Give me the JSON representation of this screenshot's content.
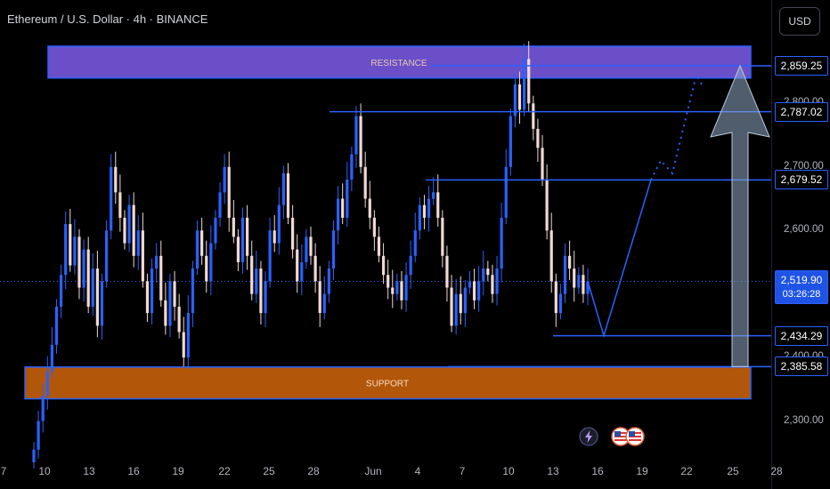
{
  "header": {
    "title": "Ethereum / U.S. Dollar · 4h · BINANCE"
  },
  "toolbar": {
    "currency_label": "USD"
  },
  "colors": {
    "bull": "#2962ff",
    "bear": "#f0d9d3",
    "resistance_zone": "#6a4fc9",
    "support_zone": "#b2560a",
    "level_line": "#2962ff",
    "arrow": "#8fa9c4"
  },
  "icons": [
    "lightning-icon",
    "us-flag-icon"
  ],
  "chart_data": {
    "type": "candlestick",
    "title": "Ethereum / U.S. Dollar · 4h · BINANCE",
    "ylim": [
      2235,
      2890
    ],
    "y_ticks": [
      2300,
      2400,
      2600,
      2700,
      2800
    ],
    "y_tick_labels": [
      "2,300.00",
      "2,400.00",
      "2,600.00",
      "2,700.00",
      "2,800.00"
    ],
    "x_tick_labels": [
      "7",
      "10",
      "13",
      "16",
      "19",
      "22",
      "25",
      "28",
      "Jun",
      "4",
      "7",
      "10",
      "13",
      "16",
      "19",
      "22",
      "25",
      "28"
    ],
    "price_levels": [
      {
        "value": 2859.25,
        "label": "2,859.25",
        "style": "outline"
      },
      {
        "value": 2787.02,
        "label": "2,787.02",
        "style": "outline"
      },
      {
        "value": 2679.52,
        "label": "2,679.52",
        "style": "outline"
      },
      {
        "value": 2434.29,
        "label": "2,434.29",
        "style": "outline"
      },
      {
        "value": 2385.58,
        "label": "2,385.58",
        "style": "outline"
      }
    ],
    "current_price": {
      "value": 2519.9,
      "label": "2,519.90",
      "countdown": "03:26:28"
    },
    "zones": [
      {
        "name": "resistance",
        "label": "RESISTANCE",
        "from": 2840,
        "to": 2890
      },
      {
        "name": "support",
        "label": "SUPPORT",
        "from": 2335,
        "to": 2385
      }
    ],
    "candles_close": [
      2255,
      2300,
      2340,
      2378,
      2420,
      2480,
      2530,
      2610,
      2545,
      2590,
      2510,
      2570,
      2480,
      2540,
      2450,
      2520,
      2600,
      2700,
      2660,
      2620,
      2580,
      2640,
      2560,
      2600,
      2520,
      2470,
      2540,
      2560,
      2490,
      2450,
      2520,
      2480,
      2440,
      2400,
      2470,
      2540,
      2600,
      2560,
      2520,
      2580,
      2620,
      2660,
      2700,
      2620,
      2590,
      2550,
      2620,
      2560,
      2500,
      2540,
      2470,
      2520,
      2600,
      2580,
      2640,
      2690,
      2620,
      2570,
      2520,
      2550,
      2590,
      2560,
      2520,
      2470,
      2500,
      2540,
      2600,
      2650,
      2620,
      2680,
      2720,
      2780,
      2700,
      2650,
      2620,
      2590,
      2560,
      2530,
      2510,
      2500,
      2520,
      2490,
      2530,
      2560,
      2600,
      2640,
      2620,
      2650,
      2660,
      2620,
      2560,
      2510,
      2450,
      2500,
      2470,
      2510,
      2520,
      2490,
      2520,
      2540,
      2530,
      2500,
      2540,
      2620,
      2700,
      2780,
      2830,
      2790,
      2870,
      2800,
      2760,
      2730,
      2680,
      2600,
      2520,
      2470,
      2500,
      2560,
      2540,
      2510,
      2530,
      2500,
      2520
    ],
    "annotations": [
      {
        "type": "projection",
        "points": [
          [
            2519.9
          ],
          [
            2434.29
          ],
          [
            2679.52
          ],
          [
            2859.25
          ]
        ]
      },
      {
        "type": "arrow",
        "from": 2385.58,
        "to": 2859.25
      }
    ]
  }
}
